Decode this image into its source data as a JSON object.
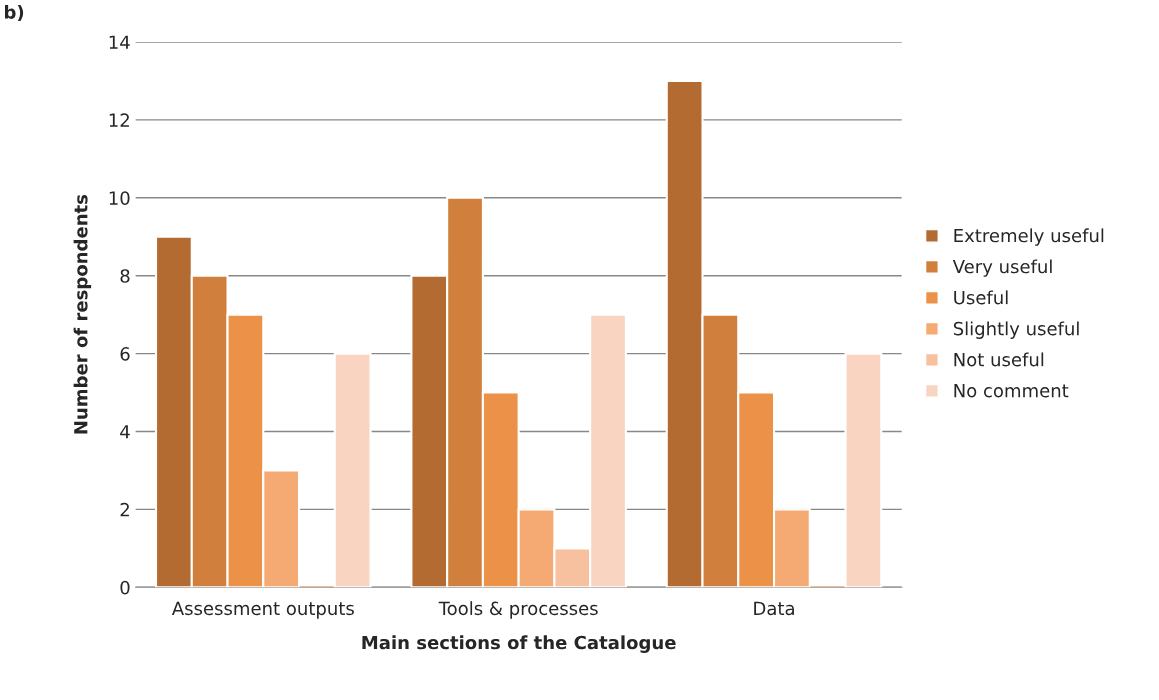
{
  "chart_data": {
    "type": "bar",
    "xlabel": "Main sections of the Catalogue",
    "ylabel": "Number of respondents",
    "categories": [
      "Assessment outputs",
      "Tools & processes",
      "Data"
    ],
    "series": [
      {
        "name": "Extremely useful",
        "color": "#b36b32",
        "values": [
          9,
          8,
          13
        ]
      },
      {
        "name": "Very useful",
        "color": "#d07f3c",
        "values": [
          8,
          10,
          7
        ]
      },
      {
        "name": "Useful",
        "color": "#eb9148",
        "values": [
          7,
          5,
          5
        ]
      },
      {
        "name": "Slightly useful",
        "color": "#f4aa72",
        "values": [
          3,
          2,
          2
        ]
      },
      {
        "name": "Not useful",
        "color": "#f7c1a0",
        "values": [
          0,
          1,
          0
        ]
      },
      {
        "name": "No comment",
        "color": "#f9d4c0",
        "values": [
          6,
          7,
          6
        ]
      }
    ],
    "ylim": [
      0,
      14
    ],
    "yticks": [
      0,
      2,
      4,
      6,
      8,
      10,
      12,
      14
    ],
    "grid": "y",
    "legend": "right",
    "annotations": [
      "b)"
    ]
  }
}
